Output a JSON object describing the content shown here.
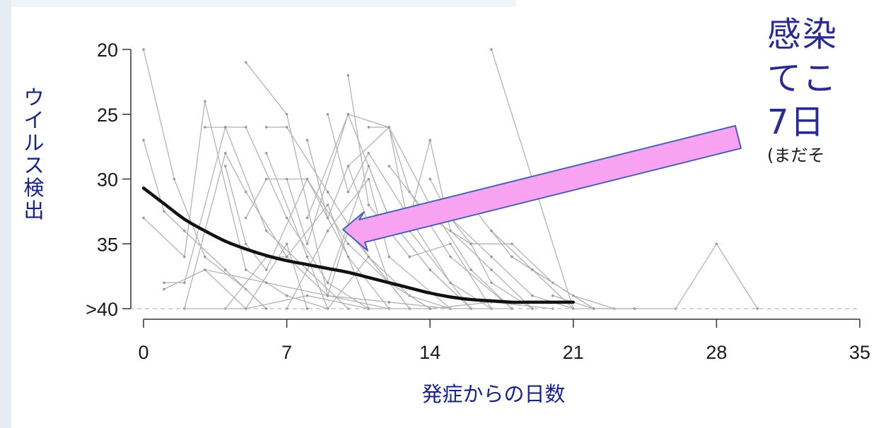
{
  "chart_data": {
    "type": "line",
    "xlabel": "発症からの日数",
    "ylabel": "ウイルス検出",
    "x_ticks": [
      0,
      7,
      14,
      21,
      28,
      35
    ],
    "x_tick_labels": [
      "0",
      "7",
      "14",
      "21",
      "28",
      "35"
    ],
    "y_ticks": [
      20,
      25,
      30,
      35,
      40
    ],
    "y_tick_labels": [
      "20",
      "25",
      "30",
      "35",
      ">40"
    ],
    "xlim": [
      0,
      35
    ],
    "ylim": [
      40,
      20
    ],
    "y_inverted": true,
    "threshold_y": 40,
    "trend": {
      "x": [
        0,
        1,
        2,
        3,
        4,
        5,
        6,
        7,
        8,
        9,
        10,
        11,
        12,
        13,
        14,
        15,
        16,
        17,
        18,
        19,
        20,
        21
      ],
      "y": [
        30.7,
        31.9,
        33.1,
        34.0,
        34.8,
        35.4,
        35.9,
        36.3,
        36.6,
        36.9,
        37.2,
        37.6,
        38.0,
        38.4,
        38.8,
        39.1,
        39.3,
        39.4,
        39.5,
        39.5,
        39.5,
        39.5
      ]
    },
    "individual_lines": [
      {
        "x": [
          0,
          1.5,
          3,
          5,
          6
        ],
        "y": [
          20,
          30,
          36,
          38.5,
          40
        ]
      },
      {
        "x": [
          0,
          1,
          2,
          4,
          6
        ],
        "y": [
          27,
          32.5,
          34,
          37,
          40
        ]
      },
      {
        "x": [
          0,
          2,
          3,
          5,
          7,
          9
        ],
        "y": [
          33,
          36,
          24,
          37,
          39,
          40
        ]
      },
      {
        "x": [
          1,
          2,
          4,
          6,
          8,
          10
        ],
        "y": [
          38,
          38,
          26,
          34,
          37,
          40
        ]
      },
      {
        "x": [
          1,
          3,
          5,
          7,
          8
        ],
        "y": [
          38.5,
          37,
          40,
          35,
          40
        ]
      },
      {
        "x": [
          2,
          4,
          5,
          7,
          9,
          11
        ],
        "y": [
          40,
          28,
          31,
          36,
          32,
          40
        ]
      },
      {
        "x": [
          3,
          4,
          5,
          7,
          9,
          11
        ],
        "y": [
          26,
          26,
          26,
          33,
          38,
          40
        ]
      },
      {
        "x": [
          4,
          5,
          6,
          8,
          10,
          12
        ],
        "y": [
          29,
          35,
          37,
          30,
          36,
          40
        ]
      },
      {
        "x": [
          4,
          6,
          7,
          9,
          12
        ],
        "y": [
          40,
          36,
          36,
          39,
          40
        ]
      },
      {
        "x": [
          5,
          7,
          9,
          10,
          13
        ],
        "y": [
          21,
          25,
          39,
          34,
          40
        ]
      },
      {
        "x": [
          5,
          6,
          8,
          10,
          12,
          14
        ],
        "y": [
          33,
          30,
          30,
          35,
          38,
          40
        ]
      },
      {
        "x": [
          6,
          7,
          9,
          11,
          13,
          15
        ],
        "y": [
          26,
          26,
          31,
          36,
          39,
          40
        ]
      },
      {
        "x": [
          6,
          8,
          9,
          11,
          13
        ],
        "y": [
          28,
          36,
          40,
          36,
          40
        ]
      },
      {
        "x": [
          7,
          8,
          10,
          12,
          14,
          16
        ],
        "y": [
          30,
          35,
          25,
          33,
          37,
          40
        ]
      },
      {
        "x": [
          7,
          9,
          11,
          12,
          15
        ],
        "y": [
          40,
          34,
          30,
          36,
          40
        ]
      },
      {
        "x": [
          8,
          9,
          10,
          12,
          14
        ],
        "y": [
          27,
          33,
          29,
          38,
          40
        ]
      },
      {
        "x": [
          8,
          10,
          12,
          13,
          16
        ],
        "y": [
          33,
          25,
          26,
          34,
          40
        ]
      },
      {
        "x": [
          9,
          10,
          11,
          13,
          15,
          17
        ],
        "y": [
          25,
          31,
          28,
          33,
          38,
          40
        ]
      },
      {
        "x": [
          9,
          11,
          12,
          14,
          16
        ],
        "y": [
          38,
          29,
          33,
          37,
          40
        ]
      },
      {
        "x": [
          10,
          11,
          13,
          15,
          17
        ],
        "y": [
          22,
          32,
          36,
          35,
          40
        ]
      },
      {
        "x": [
          10,
          12,
          14,
          16,
          18
        ],
        "y": [
          29,
          26,
          32,
          37,
          40
        ]
      },
      {
        "x": [
          11,
          12,
          13,
          15,
          18
        ],
        "y": [
          26,
          26,
          31,
          36,
          40
        ]
      },
      {
        "x": [
          12,
          14,
          16,
          17,
          19
        ],
        "y": [
          29,
          33,
          35,
          38,
          40
        ]
      },
      {
        "x": [
          13,
          14,
          15,
          17,
          19
        ],
        "y": [
          33,
          27,
          34,
          37,
          40
        ]
      },
      {
        "x": [
          14,
          15,
          17,
          19,
          21
        ],
        "y": [
          30,
          33,
          36,
          39,
          40
        ]
      },
      {
        "x": [
          15,
          16,
          18,
          20,
          22
        ],
        "y": [
          33,
          35,
          35,
          38,
          40
        ]
      },
      {
        "x": [
          16,
          17,
          19,
          21
        ],
        "y": [
          32,
          34,
          37,
          40
        ]
      },
      {
        "x": [
          17,
          18,
          20,
          22
        ],
        "y": [
          34,
          36,
          38,
          40
        ]
      },
      {
        "x": [
          17,
          21,
          22,
          24
        ],
        "y": [
          20,
          40,
          40,
          40
        ]
      },
      {
        "x": [
          18,
          19,
          21,
          23
        ],
        "y": [
          36,
          37,
          39,
          40
        ]
      },
      {
        "x": [
          20,
          22,
          24,
          26,
          28,
          30
        ],
        "y": [
          39,
          40,
          40,
          40,
          35,
          40
        ]
      },
      {
        "x": [
          3,
          6,
          9,
          12,
          15,
          18
        ],
        "y": [
          37,
          38,
          39,
          39.5,
          40,
          40
        ]
      },
      {
        "x": [
          2,
          5,
          8,
          11,
          14,
          17,
          20
        ],
        "y": [
          40,
          40,
          39,
          40,
          40,
          39.5,
          40
        ]
      }
    ],
    "threshold_x_range": [
      0,
      35
    ]
  },
  "annotation": {
    "lines": [
      "感染",
      "てこ",
      "7日"
    ],
    "note": "(まだそ"
  },
  "colors": {
    "trend": "#111111",
    "individual": "#b3b3b3",
    "axis": "#333333",
    "arrow_fill": "#f7a3f2",
    "arrow_stroke": "#4b5fb4",
    "axis_title": "#1a237e",
    "annotation_text": "#2b2b8f"
  }
}
